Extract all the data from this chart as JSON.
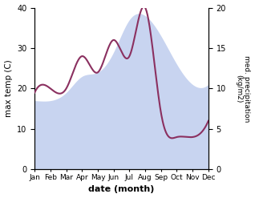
{
  "months": [
    "Jan",
    "Feb",
    "Mar",
    "Apr",
    "May",
    "Jun",
    "Jul",
    "Aug",
    "Sep",
    "Oct",
    "Nov",
    "Dec"
  ],
  "max_temp": [
    17,
    17,
    19,
    23,
    24,
    29,
    37,
    38,
    33,
    26,
    21,
    21
  ],
  "precip": [
    9.5,
    10,
    10,
    14,
    12,
    16,
    14,
    20,
    7,
    4,
    4,
    6
  ],
  "temp_fill_color": "#c8d4f0",
  "precip_color": "#8b3060",
  "xlabel": "date (month)",
  "ylabel_left": "max temp (C)",
  "ylabel_right": "med. precipitation\n(kg/m2)",
  "ylim_left": [
    0,
    40
  ],
  "ylim_right": [
    0,
    20
  ],
  "yticks_left": [
    0,
    10,
    20,
    30,
    40
  ],
  "yticks_right": [
    0,
    5,
    10,
    15,
    20
  ],
  "background_color": "#ffffff"
}
